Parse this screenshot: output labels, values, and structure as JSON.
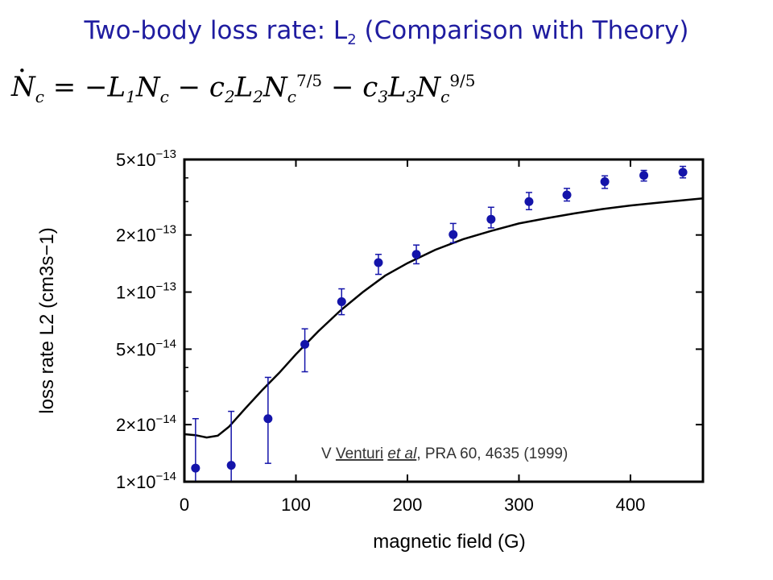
{
  "slide": {
    "title": "Two-body loss rate: L",
    "title_sub": "2",
    "title_rest": " (Comparison with Theory)"
  },
  "equation": {
    "lhs": "N",
    "lhs_sub": "c",
    "t1_coef": " = −L",
    "t1_coef_sub": "1",
    "t1_var": "N",
    "t1_var_sub": "c",
    "t2_c": " − c",
    "t2_c_sub": "2",
    "t2_L": "L",
    "t2_L_sub": "2",
    "t2_N": "N",
    "t2_N_sub": "c",
    "t2_exp": "7/5",
    "t3_c": " − c",
    "t3_c_sub": "3",
    "t3_L": "L",
    "t3_L_sub": "3",
    "t3_N": "N",
    "t3_N_sub": "c",
    "t3_exp": "9/5"
  },
  "colors": {
    "title": "#1f1ca0",
    "points": "#1414aa",
    "curve": "#000000"
  },
  "chart_data": {
    "type": "scatter",
    "xlabel": "magnetic field (G)",
    "ylabel": "loss rate L2 (cm3s−1)",
    "xlim": [
      0,
      465
    ],
    "ylim": [
      1e-14,
      5e-13
    ],
    "yscale": "log",
    "xticks": [
      0,
      100,
      200,
      300,
      400
    ],
    "yticks": [
      {
        "value": 1e-14,
        "label": "1×10",
        "exp": "−14"
      },
      {
        "value": 2e-14,
        "label": "2×10",
        "exp": "−14"
      },
      {
        "value": 5e-14,
        "label": "5×10",
        "exp": "−14"
      },
      {
        "value": 1e-13,
        "label": "1×10",
        "exp": "−13"
      },
      {
        "value": 2e-13,
        "label": "2×10",
        "exp": "−13"
      },
      {
        "value": 5e-13,
        "label": "5×10",
        "exp": "−13"
      }
    ],
    "annotation": {
      "prefix": "V ",
      "author": "Venturi",
      "sep": " ",
      "etal": "et al",
      "rest": ", PRA 60, 4635 (1999)"
    },
    "series": [
      {
        "points": [
          {
            "x": 10,
            "y": 1.18e-14,
            "ylo": 1e-14,
            "yhi": 2.15e-14
          },
          {
            "x": 42,
            "y": 1.22e-14,
            "ylo": 1e-14,
            "yhi": 2.35e-14
          },
          {
            "x": 75,
            "y": 2.15e-14,
            "ylo": 1.25e-14,
            "yhi": 3.55e-14
          },
          {
            "x": 108,
            "y": 5.3e-14,
            "ylo": 3.8e-14,
            "yhi": 6.4e-14
          },
          {
            "x": 141,
            "y": 8.9e-14,
            "ylo": 7.6e-14,
            "yhi": 1.04e-13
          },
          {
            "x": 174,
            "y": 1.43e-13,
            "ylo": 1.24e-13,
            "yhi": 1.58e-13
          },
          {
            "x": 208,
            "y": 1.58e-13,
            "ylo": 1.41e-13,
            "yhi": 1.77e-13
          },
          {
            "x": 241,
            "y": 2.01e-13,
            "ylo": 1.82e-13,
            "yhi": 2.3e-13
          },
          {
            "x": 275,
            "y": 2.42e-13,
            "ylo": 2.18e-13,
            "yhi": 2.8e-13
          },
          {
            "x": 309,
            "y": 3e-13,
            "ylo": 2.72e-13,
            "yhi": 3.35e-13
          },
          {
            "x": 343,
            "y": 3.25e-13,
            "ylo": 3.02e-13,
            "yhi": 3.52e-13
          },
          {
            "x": 377,
            "y": 3.82e-13,
            "ylo": 3.52e-13,
            "yhi": 4.1e-13
          },
          {
            "x": 412,
            "y": 4.12e-13,
            "ylo": 3.85e-13,
            "yhi": 4.38e-13
          },
          {
            "x": 447,
            "y": 4.28e-13,
            "ylo": 4e-13,
            "yhi": 4.6e-13
          }
        ]
      }
    ],
    "theory_curve": [
      {
        "x": 0,
        "y": 1.78e-14
      },
      {
        "x": 10,
        "y": 1.76e-14
      },
      {
        "x": 20,
        "y": 1.71e-14
      },
      {
        "x": 30,
        "y": 1.75e-14
      },
      {
        "x": 40,
        "y": 1.95e-14
      },
      {
        "x": 55,
        "y": 2.45e-14
      },
      {
        "x": 70,
        "y": 3.05e-14
      },
      {
        "x": 85,
        "y": 3.75e-14
      },
      {
        "x": 100,
        "y": 4.7e-14
      },
      {
        "x": 120,
        "y": 6.2e-14
      },
      {
        "x": 140,
        "y": 8e-14
      },
      {
        "x": 160,
        "y": 1e-13
      },
      {
        "x": 180,
        "y": 1.22e-13
      },
      {
        "x": 200,
        "y": 1.42e-13
      },
      {
        "x": 225,
        "y": 1.67e-13
      },
      {
        "x": 250,
        "y": 1.9e-13
      },
      {
        "x": 275,
        "y": 2.1e-13
      },
      {
        "x": 300,
        "y": 2.3e-13
      },
      {
        "x": 325,
        "y": 2.45e-13
      },
      {
        "x": 350,
        "y": 2.6e-13
      },
      {
        "x": 375,
        "y": 2.74e-13
      },
      {
        "x": 400,
        "y": 2.86e-13
      },
      {
        "x": 425,
        "y": 2.96e-13
      },
      {
        "x": 450,
        "y": 3.06e-13
      },
      {
        "x": 465,
        "y": 3.12e-13
      }
    ]
  }
}
